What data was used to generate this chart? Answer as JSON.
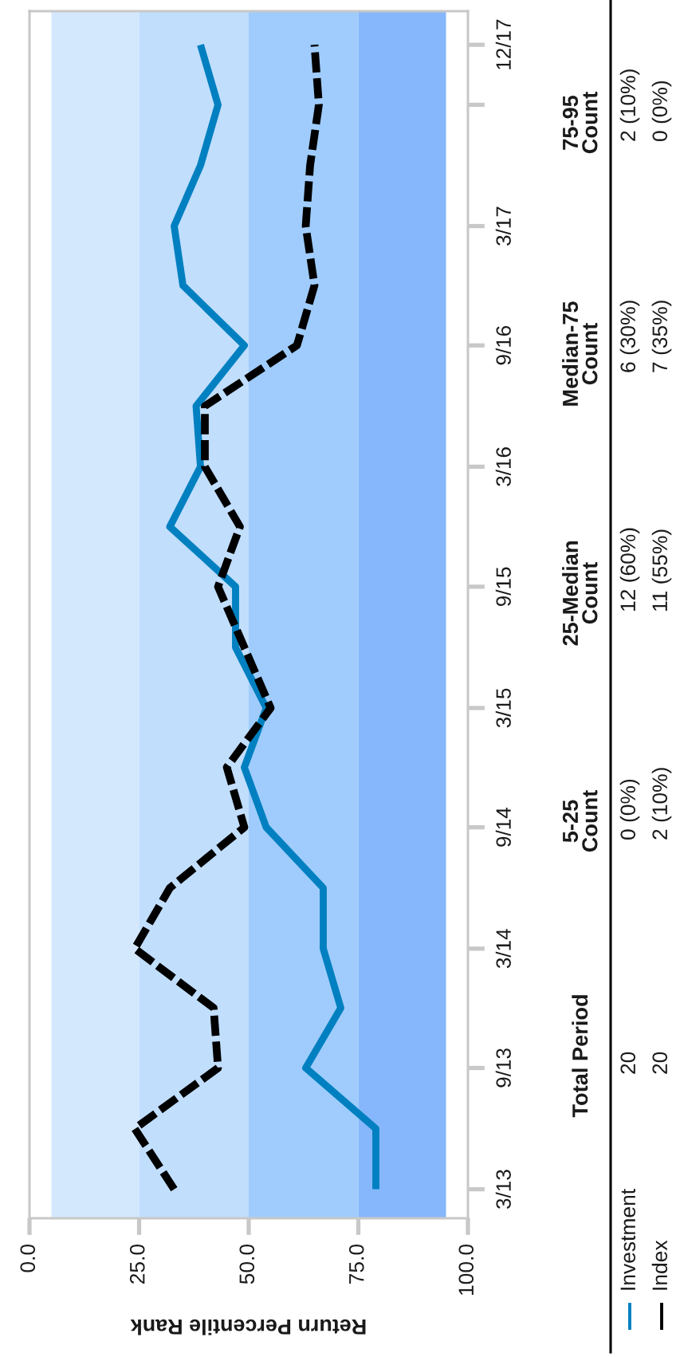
{
  "chart_data": {
    "type": "line",
    "orientation": "horizontal",
    "xlabel": "Return Percentile Rank",
    "x": [
      "2013-03",
      "2013-06",
      "2013-09",
      "2013-12",
      "2014-03",
      "2014-06",
      "2014-09",
      "2014-12",
      "2015-03",
      "2015-06",
      "2015-09",
      "2015-12",
      "2016-03",
      "2016-06",
      "2016-09",
      "2016-12",
      "2017-03",
      "2017-06",
      "2017-09",
      "2017-12"
    ],
    "xlim": [
      0,
      100
    ],
    "xticks": [
      {
        "value": 0,
        "label": "0.0"
      },
      {
        "value": 25,
        "label": "25.0"
      },
      {
        "value": 50,
        "label": "50.0"
      },
      {
        "value": 75,
        "label": "75.0"
      },
      {
        "value": 100,
        "label": "100.0"
      }
    ],
    "ylim": [
      "2013-01-16",
      "2018-01-21"
    ],
    "yticks": [
      {
        "value": "2013-03",
        "label": "3/13"
      },
      {
        "value": "2013-09",
        "label": "9/13"
      },
      {
        "value": "2014-03",
        "label": "3/14"
      },
      {
        "value": "2014-09",
        "label": "9/14"
      },
      {
        "value": "2015-03",
        "label": "3/15"
      },
      {
        "value": "2015-09",
        "label": "9/15"
      },
      {
        "value": "2016-03",
        "label": "3/16"
      },
      {
        "value": "2016-09",
        "label": "9/16"
      },
      {
        "value": "2017-03",
        "label": "3/17"
      },
      {
        "value": "2017-09",
        "label": null
      },
      {
        "value": "2017-12",
        "label": "12/17"
      }
    ],
    "series": [
      {
        "name": "Investment",
        "color": "#0080c0",
        "line_style": "solid",
        "values": [
          79,
          79,
          63,
          71,
          67,
          67,
          54,
          49,
          54,
          47,
          47,
          32,
          39,
          38,
          49,
          35,
          33,
          39,
          43,
          39
        ]
      },
      {
        "name": "Index",
        "color": "#000000",
        "line_style": "dashed",
        "values": [
          33,
          24,
          43,
          42,
          24,
          32,
          49,
          45,
          55,
          49,
          43,
          48,
          40,
          40,
          61,
          65,
          63,
          64,
          66,
          65
        ]
      }
    ],
    "bands": [
      {
        "axis": "x",
        "from": 5,
        "to": 25,
        "color": "#d4e8fd"
      },
      {
        "axis": "x",
        "from": 25,
        "to": 50,
        "color": "#c1defd"
      },
      {
        "axis": "x",
        "from": 50,
        "to": 75,
        "color": "#9fccfc"
      },
      {
        "axis": "x",
        "from": 75,
        "to": 95,
        "color": "#86b7fc"
      }
    ],
    "legend": "bottom",
    "annotations": [
      "Total Period",
      "5-25\nCount",
      "25-Median\nCount",
      "Median-75\nCount",
      "75-95\nCount",
      "20",
      "0 (0%)",
      "12 (60%)",
      "6 (30%)",
      "2 (10%)",
      "20",
      "2 (10%)",
      "11 (55%)",
      "7 (35%)",
      "0 (0%)"
    ]
  }
}
